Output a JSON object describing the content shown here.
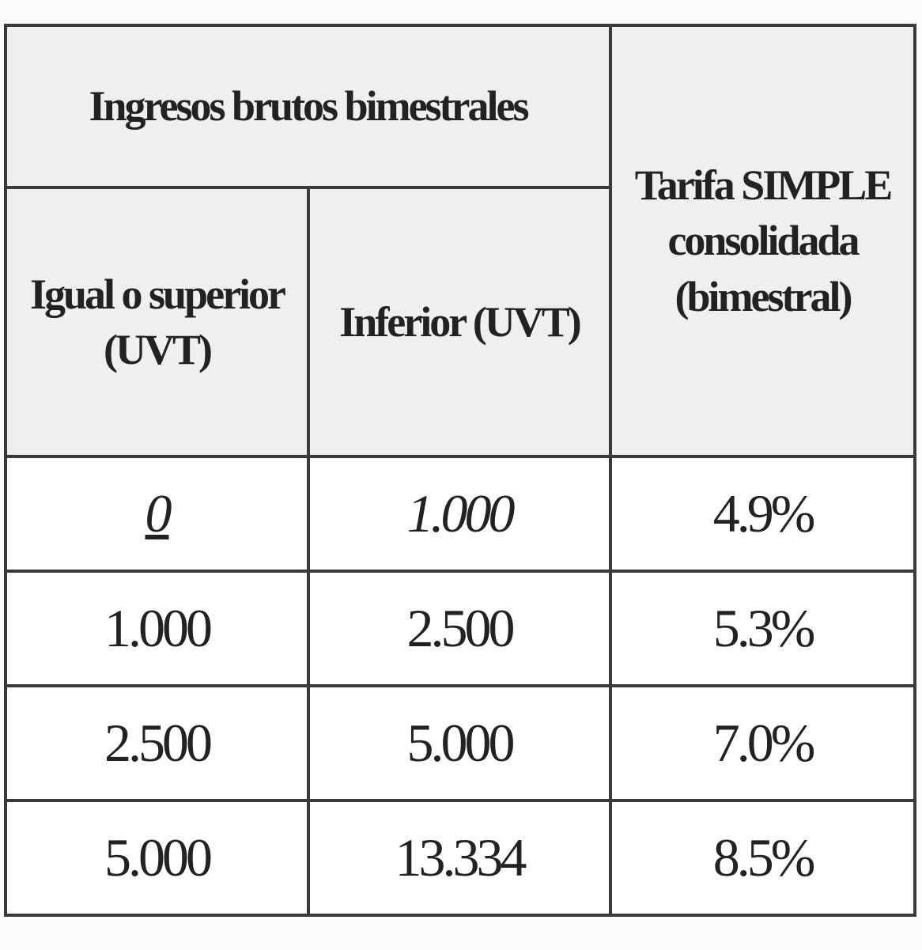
{
  "table": {
    "header": {
      "group": "Ingresos brutos bimestrales",
      "rate": "Tarifa SIMPLE consolidada (bimestral)",
      "lower": "Igual o superior (UVT)",
      "upper": "Inferior (UVT)"
    },
    "rows": [
      [
        "0",
        "1.000",
        "4.9%"
      ],
      [
        "1.000",
        "2.500",
        "5.3%"
      ],
      [
        "2.500",
        "5.000",
        "7.0%"
      ],
      [
        "5.000",
        "13.334",
        "8.5%"
      ]
    ]
  }
}
